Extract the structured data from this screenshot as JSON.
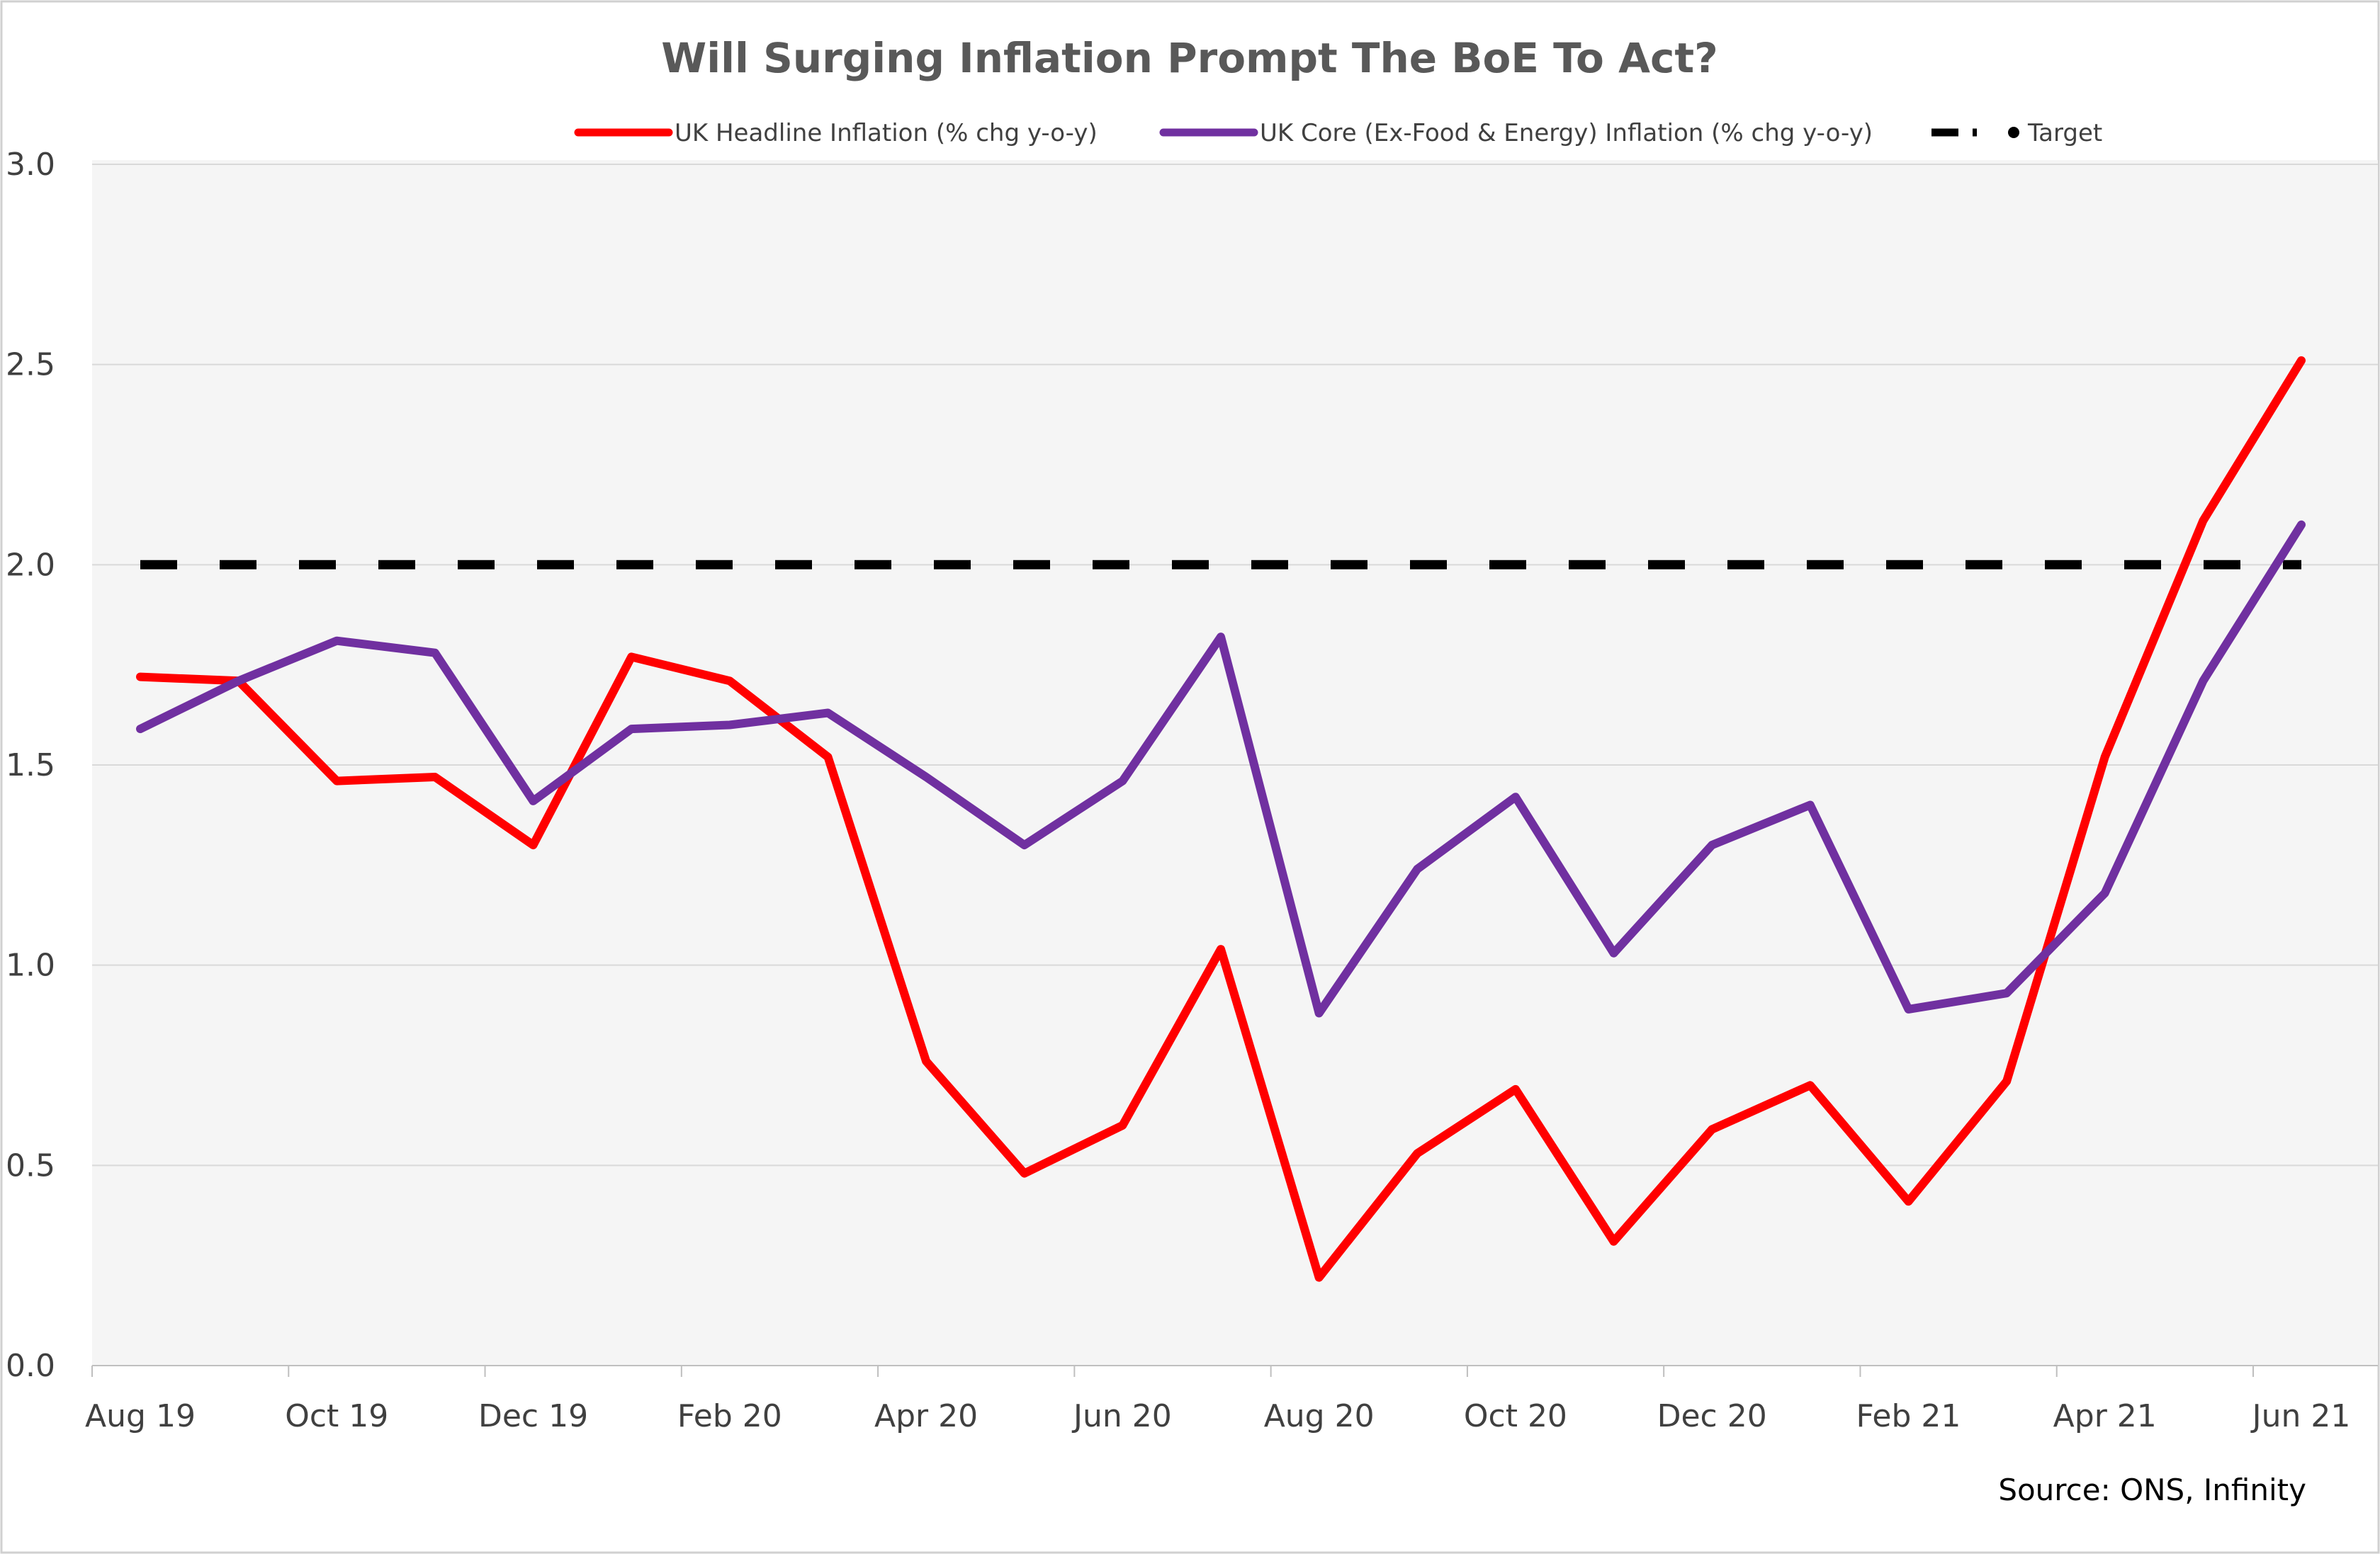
{
  "chart_data": {
    "type": "line",
    "title": "Will Surging Inflation Prompt The BoE To Act?",
    "source": "Source: ONS, Infinity",
    "xlabel": "",
    "ylabel": "",
    "ylim": [
      0,
      3
    ],
    "y_ticks": [
      {
        "value": 0,
        "label": "0.0"
      },
      {
        "value": 0.5,
        "label": "0.5"
      },
      {
        "value": 1,
        "label": "1.0"
      },
      {
        "value": 1.5,
        "label": "1.5"
      },
      {
        "value": 2,
        "label": "2.0"
      },
      {
        "value": 2.5,
        "label": "2.5"
      },
      {
        "value": 3,
        "label": "3.0"
      }
    ],
    "grid": true,
    "legend_position": "top",
    "categories": [
      "Aug 19",
      "Sep 19",
      "Oct 19",
      "Nov 19",
      "Dec 19",
      "Jan 20",
      "Feb 20",
      "Mar 20",
      "Apr 20",
      "May 20",
      "Jun 20",
      "Jul 20",
      "Aug 20",
      "Sep 20",
      "Oct 20",
      "Nov 20",
      "Dec 20",
      "Jan 21",
      "Feb 21",
      "Mar 21",
      "Apr 21",
      "May 21",
      "Jun 21"
    ],
    "x_tick_labels": [
      {
        "index": 0,
        "label": "Aug 19"
      },
      {
        "index": 2,
        "label": "Oct 19"
      },
      {
        "index": 4,
        "label": "Dec 19"
      },
      {
        "index": 6,
        "label": "Feb 20"
      },
      {
        "index": 8,
        "label": "Apr 20"
      },
      {
        "index": 10,
        "label": "Jun 20"
      },
      {
        "index": 12,
        "label": "Aug 20"
      },
      {
        "index": 14,
        "label": "Oct 20"
      },
      {
        "index": 16,
        "label": "Dec 20"
      },
      {
        "index": 18,
        "label": "Feb 21"
      },
      {
        "index": 20,
        "label": "Apr 21"
      },
      {
        "index": 22,
        "label": "Jun 21"
      }
    ],
    "series": [
      {
        "name": "UK Headline Inflation (% chg y-o-y)",
        "color": "#ff0000",
        "style": "solid",
        "values": [
          1.72,
          1.71,
          1.46,
          1.47,
          1.3,
          1.77,
          1.71,
          1.52,
          0.76,
          0.48,
          0.6,
          1.04,
          0.22,
          0.53,
          0.69,
          0.31,
          0.59,
          0.7,
          0.41,
          0.71,
          1.52,
          2.11,
          2.51
        ]
      },
      {
        "name": "UK Core (Ex-Food & Energy) Inflation (% chg y-o-y)",
        "color": "#7030a0",
        "style": "solid",
        "values": [
          1.59,
          1.71,
          1.81,
          1.78,
          1.41,
          1.59,
          1.6,
          1.63,
          1.47,
          1.3,
          1.46,
          1.82,
          0.88,
          1.24,
          1.42,
          1.03,
          1.3,
          1.4,
          0.89,
          0.93,
          1.18,
          1.71,
          2.1
        ]
      },
      {
        "name": "Target",
        "color": "#000000",
        "style": "dashed",
        "values": [
          2.0,
          2.0,
          2.0,
          2.0,
          2.0,
          2.0,
          2.0,
          2.0,
          2.0,
          2.0,
          2.0,
          2.0,
          2.0,
          2.0,
          2.0,
          2.0,
          2.0,
          2.0,
          2.0,
          2.0,
          2.0,
          2.0,
          2.0
        ]
      }
    ]
  }
}
